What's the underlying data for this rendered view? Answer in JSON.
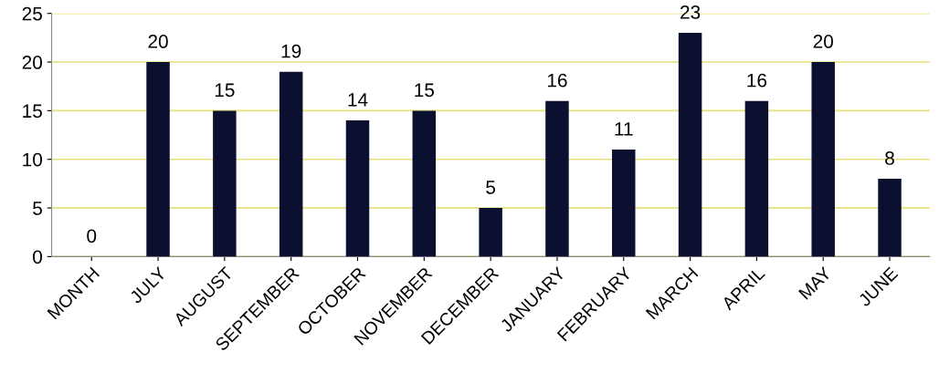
{
  "chart_data": {
    "type": "bar",
    "categories": [
      "MONTH",
      "JULY",
      "AUGUST",
      "SEPTEMBER",
      "OCTOBER",
      "NOVEMBER",
      "DECEMBER",
      "JANUARY",
      "FEBRUARY",
      "MARCH",
      "APRIL",
      "MAY",
      "JUNE"
    ],
    "values": [
      0,
      20,
      15,
      19,
      14,
      15,
      5,
      16,
      11,
      23,
      16,
      20,
      8
    ],
    "color": "#0b1030",
    "ylim": [
      0,
      25
    ],
    "yticks": [
      0,
      5,
      10,
      15,
      20,
      25
    ],
    "grid": "y",
    "data_labels": true,
    "legend": false
  }
}
